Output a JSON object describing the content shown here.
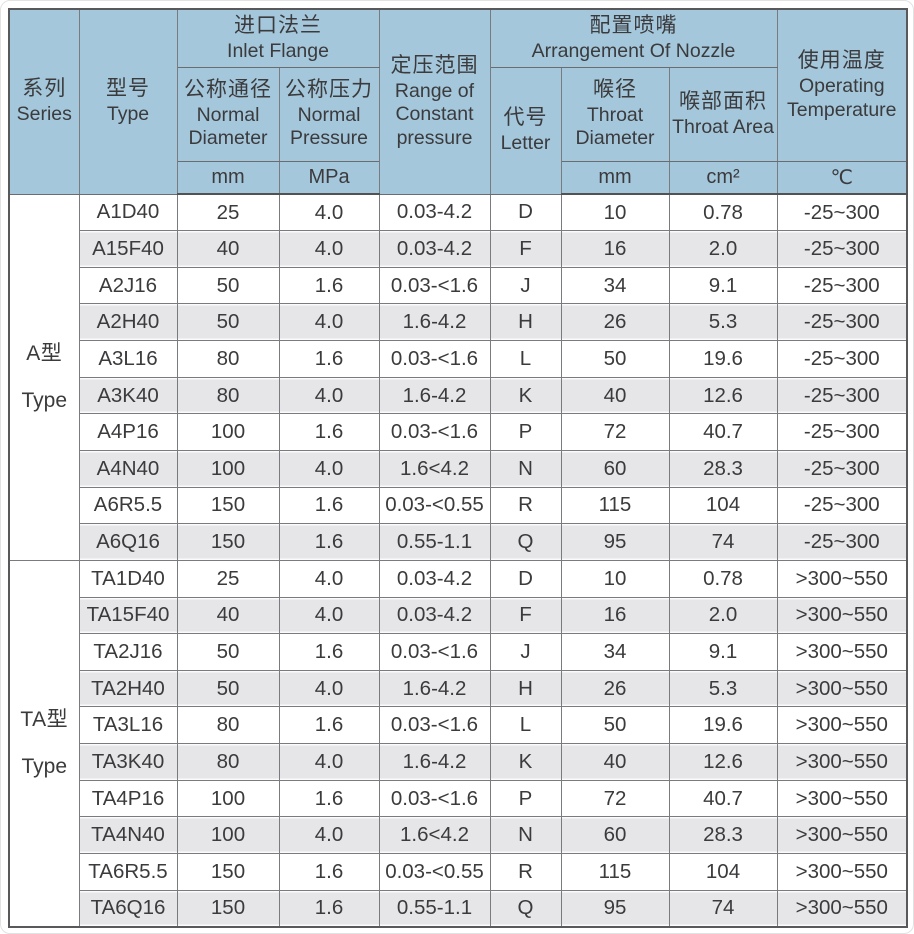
{
  "colors": {
    "header_bg": "#a4c7db",
    "row_bg": "#ffffff",
    "row_alt_bg": "#e6e6e8",
    "border": "#7a7b7e",
    "border_strong": "#515254",
    "text": "#3b3b3d"
  },
  "table": {
    "header": {
      "series_zh": "系列",
      "series_en": "Series",
      "type_zh": "型号",
      "type_en": "Type",
      "inlet_flange_zh": "进口法兰",
      "inlet_flange_en": "Inlet Flange",
      "normal_diameter_zh": "公称通径",
      "normal_diameter_en": "Normal Diameter",
      "normal_diameter_unit": "mm",
      "normal_pressure_zh": "公称压力",
      "normal_pressure_en": "Normal Pressure",
      "normal_pressure_unit": "MPa",
      "pressure_range_zh": "定压范围",
      "pressure_range_en": "Range of Constant pressure",
      "nozzle_zh": "配置喷嘴",
      "nozzle_en": "Arrangement Of Nozzle",
      "letter_zh": "代号",
      "letter_en": "Letter",
      "throat_diameter_zh": "喉径",
      "throat_diameter_en": "Throat Diameter",
      "throat_diameter_unit": "mm",
      "throat_area_zh": "喉部面积",
      "throat_area_en": "Throat Area",
      "throat_area_unit": "cm²",
      "temperature_zh": "使用温度",
      "temperature_en": "Operating Temperature",
      "temperature_unit": "℃"
    },
    "column_ids": [
      "type",
      "normal-diameter",
      "normal-pressure",
      "pressure-range",
      "letter",
      "throat-diameter",
      "throat-area",
      "temperature"
    ],
    "sections": [
      {
        "series_zh": "A型",
        "series_en": "Type",
        "rows": [
          [
            "A1D40",
            "25",
            "4.0",
            "0.03-4.2",
            "D",
            "10",
            "0.78",
            "-25~300"
          ],
          [
            "A15F40",
            "40",
            "4.0",
            "0.03-4.2",
            "F",
            "16",
            "2.0",
            "-25~300"
          ],
          [
            "A2J16",
            "50",
            "1.6",
            "0.03-<1.6",
            "J",
            "34",
            "9.1",
            "-25~300"
          ],
          [
            "A2H40",
            "50",
            "4.0",
            "1.6-4.2",
            "H",
            "26",
            "5.3",
            "-25~300"
          ],
          [
            "A3L16",
            "80",
            "1.6",
            "0.03-<1.6",
            "L",
            "50",
            "19.6",
            "-25~300"
          ],
          [
            "A3K40",
            "80",
            "4.0",
            "1.6-4.2",
            "K",
            "40",
            "12.6",
            "-25~300"
          ],
          [
            "A4P16",
            "100",
            "1.6",
            "0.03-<1.6",
            "P",
            "72",
            "40.7",
            "-25~300"
          ],
          [
            "A4N40",
            "100",
            "4.0",
            "1.6<4.2",
            "N",
            "60",
            "28.3",
            "-25~300"
          ],
          [
            "A6R5.5",
            "150",
            "1.6",
            "0.03-<0.55",
            "R",
            "115",
            "104",
            "-25~300"
          ],
          [
            "A6Q16",
            "150",
            "1.6",
            "0.55-1.1",
            "Q",
            "95",
            "74",
            "-25~300"
          ]
        ]
      },
      {
        "series_zh": "TA型",
        "series_en": "Type",
        "rows": [
          [
            "TA1D40",
            "25",
            "4.0",
            "0.03-4.2",
            "D",
            "10",
            "0.78",
            ">300~550"
          ],
          [
            "TA15F40",
            "40",
            "4.0",
            "0.03-4.2",
            "F",
            "16",
            "2.0",
            ">300~550"
          ],
          [
            "TA2J16",
            "50",
            "1.6",
            "0.03-<1.6",
            "J",
            "34",
            "9.1",
            ">300~550"
          ],
          [
            "TA2H40",
            "50",
            "4.0",
            "1.6-4.2",
            "H",
            "26",
            "5.3",
            ">300~550"
          ],
          [
            "TA3L16",
            "80",
            "1.6",
            "0.03-<1.6",
            "L",
            "50",
            "19.6",
            ">300~550"
          ],
          [
            "TA3K40",
            "80",
            "4.0",
            "1.6-4.2",
            "K",
            "40",
            "12.6",
            ">300~550"
          ],
          [
            "TA4P16",
            "100",
            "1.6",
            "0.03-<1.6",
            "P",
            "72",
            "40.7",
            ">300~550"
          ],
          [
            "TA4N40",
            "100",
            "4.0",
            "1.6<4.2",
            "N",
            "60",
            "28.3",
            ">300~550"
          ],
          [
            "TA6R5.5",
            "150",
            "1.6",
            "0.03-<0.55",
            "R",
            "115",
            "104",
            ">300~550"
          ],
          [
            "TA6Q16",
            "150",
            "1.6",
            "0.55-1.1",
            "Q",
            "95",
            "74",
            ">300~550"
          ]
        ]
      }
    ]
  }
}
